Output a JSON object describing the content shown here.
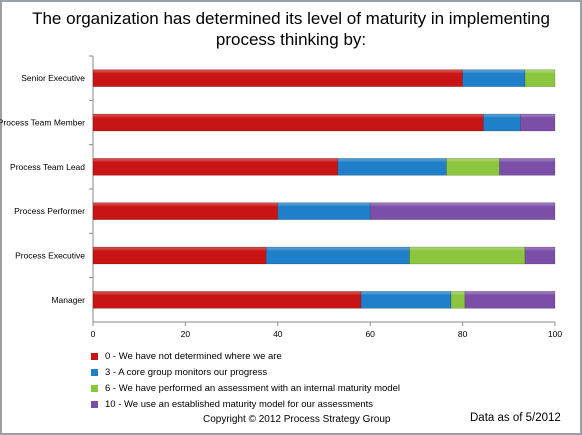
{
  "chart_data": {
    "type": "bar",
    "orientation": "horizontal",
    "stacked": true,
    "title": [
      "The organization has determined its level of maturity in implementing",
      "process thinking by:"
    ],
    "categories": [
      "Senior Executive",
      "Process Team Member",
      "Process Team Lead",
      "Process Performer",
      "Process Executive",
      "Manager"
    ],
    "series": [
      {
        "name": "0 - We have not determined where we are",
        "color": "#c81414",
        "values": [
          80,
          84.5,
          53,
          40,
          37.5,
          58
        ]
      },
      {
        "name": "3 - A core group monitors our progress",
        "color": "#1f7fc8",
        "values": [
          13.5,
          8,
          23.5,
          20,
          31,
          19.5
        ]
      },
      {
        "name": "6 - We have performed an assessment with an internal maturity model",
        "color": "#8cc63e",
        "values": [
          6.5,
          0,
          11.5,
          0,
          25,
          3
        ]
      },
      {
        "name": "10 - We use an established maturity model for our assessments",
        "color": "#7b4fa8",
        "values": [
          0,
          7.5,
          12,
          40,
          6.5,
          19.5
        ]
      }
    ],
    "xlim": [
      0,
      100
    ],
    "xticks": [
      0,
      20,
      40,
      60,
      80,
      100
    ],
    "grid": false,
    "legend_position": "bottom"
  },
  "copyright": "Copyright © 2012 Process Strategy Group",
  "data_as_of": "Data as of 5/2012"
}
